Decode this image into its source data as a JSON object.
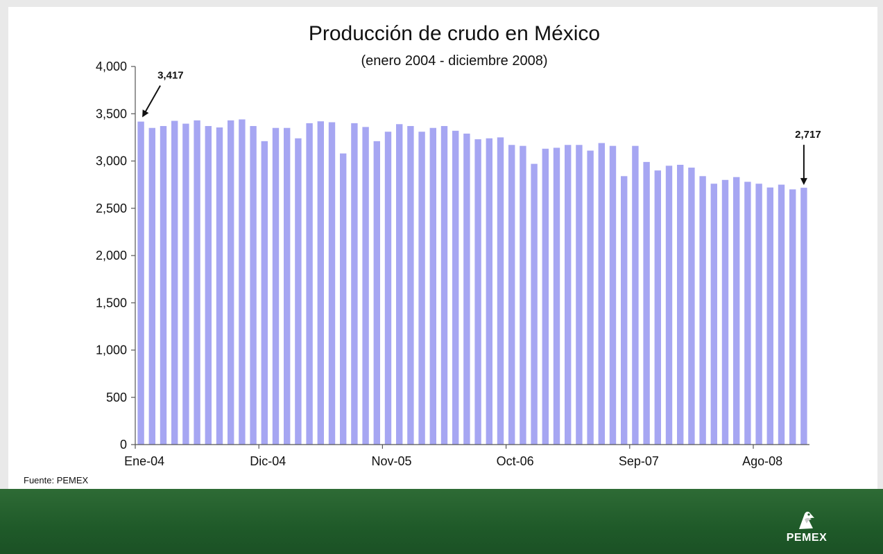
{
  "source_note": "Fuente: PEMEX",
  "brand": {
    "name": "PEMEX",
    "logo_icon": "pemex-eagle-icon"
  },
  "colors": {
    "bar": "#a6a6f2",
    "footer": "#1f5a29",
    "background": "#ffffff"
  },
  "chart_data": {
    "type": "bar",
    "title": "Producción de crudo en México",
    "subtitle": "(enero 2004 - diciembre 2008)",
    "xlabel": "",
    "ylabel": "",
    "ylim": [
      0,
      4000
    ],
    "yticks": [
      0,
      500,
      1000,
      1500,
      2000,
      2500,
      3000,
      3500,
      4000
    ],
    "ytick_labels": [
      "0",
      "500",
      "1,000",
      "1,500",
      "2,000",
      "2,500",
      "3,000",
      "3,500",
      "4,000"
    ],
    "xtick_labels": [
      {
        "index": 0,
        "label": "Ene-04"
      },
      {
        "index": 11,
        "label": "Dic-04"
      },
      {
        "index": 22,
        "label": "Nov-05"
      },
      {
        "index": 33,
        "label": "Oct-06"
      },
      {
        "index": 44,
        "label": "Sep-07"
      },
      {
        "index": 55,
        "label": "Ago-08"
      }
    ],
    "grid": false,
    "legend": "none",
    "values": [
      3417,
      3350,
      3370,
      3425,
      3395,
      3430,
      3370,
      3355,
      3430,
      3440,
      3370,
      3210,
      3350,
      3350,
      3240,
      3400,
      3420,
      3410,
      3080,
      3400,
      3360,
      3210,
      3310,
      3390,
      3370,
      3310,
      3350,
      3370,
      3320,
      3290,
      3230,
      3240,
      3250,
      3170,
      3160,
      2970,
      3130,
      3140,
      3170,
      3170,
      3110,
      3190,
      3160,
      2840,
      3160,
      2990,
      2900,
      2950,
      2960,
      2930,
      2840,
      2760,
      2800,
      2830,
      2780,
      2760,
      2720,
      2750,
      2700,
      2717
    ],
    "annotations": [
      {
        "index": 0,
        "label": "3,417"
      },
      {
        "index": 59,
        "label": "2,717"
      }
    ]
  }
}
